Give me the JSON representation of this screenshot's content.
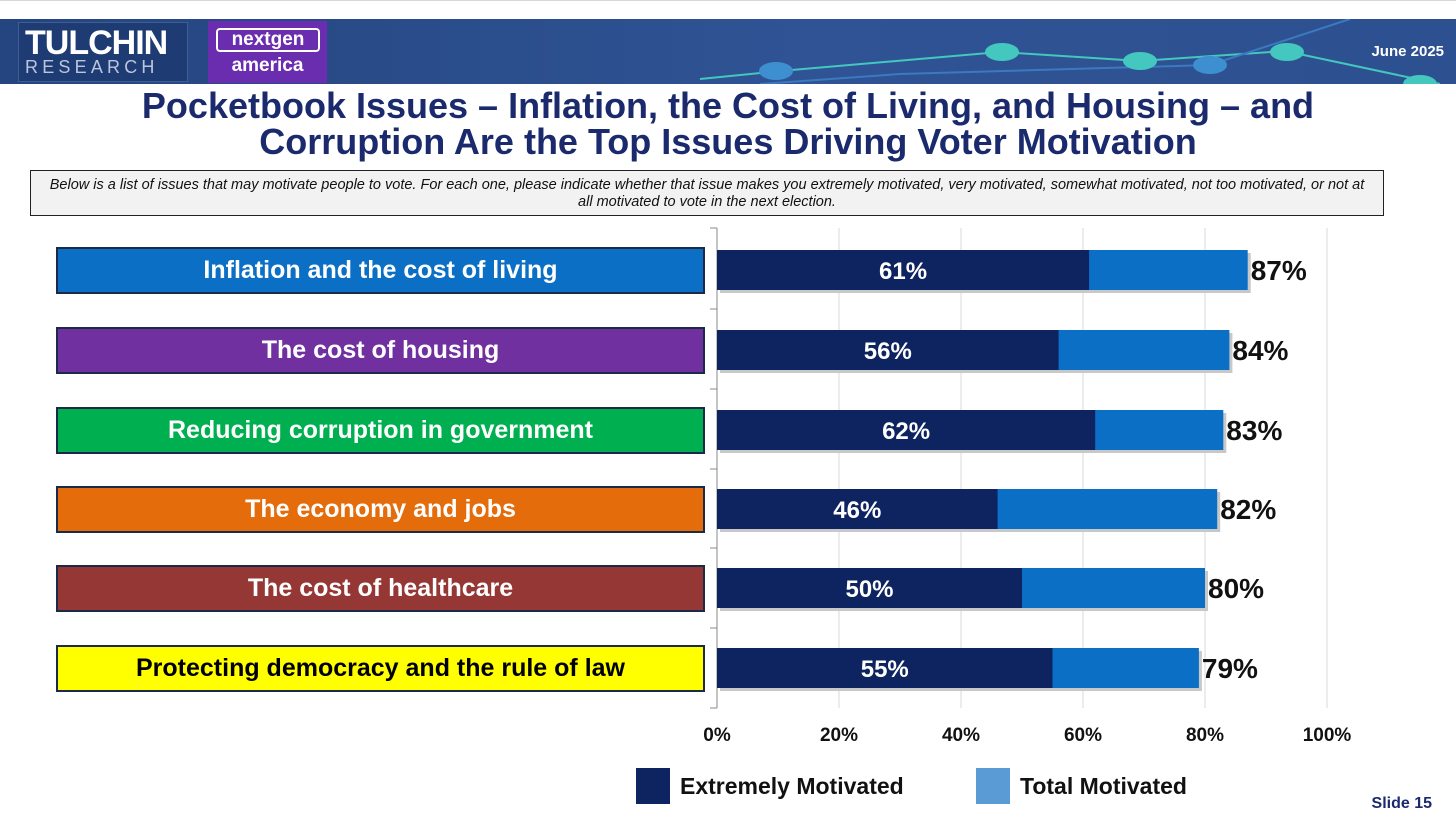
{
  "header": {
    "logo_tulchin_top": "TULCHIN",
    "logo_tulchin_bottom": "RESEARCH",
    "logo_nextgen_top": "nextgen",
    "logo_nextgen_bottom": "america",
    "date": "June 2025"
  },
  "title_line1": "Pocketbook Issues – Inflation, the Cost of Living, and Housing – and",
  "title_line2": "Corruption Are the Top Issues Driving Voter Motivation",
  "question_text": "Below is a list of issues that may motivate people to vote. For each one, please indicate whether that issue makes you extremely motivated, very motivated, somewhat motivated, not too motivated, or not at all motivated to vote in the next election.",
  "category_colors": [
    "#0b6fc6",
    "#7030a0",
    "#00b050",
    "#e46c0a",
    "#953735",
    "#ffff00"
  ],
  "category_text_colors": [
    "#ffffff",
    "#ffffff",
    "#ffffff",
    "#ffffff",
    "#ffffff",
    "#000000"
  ],
  "colors": {
    "extremely": "#0d2461",
    "total": "#0b6fc6",
    "legend_total": "#5b9bd5"
  },
  "chart_data": {
    "type": "bar",
    "orientation": "horizontal",
    "stacking": "overlay",
    "categories": [
      "Inflation and the cost of living",
      "The cost of housing",
      "Reducing corruption in government",
      "The economy and jobs",
      "The cost of healthcare",
      "Protecting democracy and the rule of law"
    ],
    "series": [
      {
        "name": "Extremely Motivated",
        "values": [
          61,
          56,
          62,
          46,
          50,
          55
        ]
      },
      {
        "name": "Total Motivated",
        "values": [
          87,
          84,
          83,
          82,
          80,
          79
        ]
      }
    ],
    "value_labels": {
      "extremely": [
        "61%",
        "56%",
        "62%",
        "46%",
        "50%",
        "55%"
      ],
      "total": [
        "87%",
        "84%",
        "83%",
        "82%",
        "80%",
        "79%"
      ]
    },
    "xlim": [
      0,
      100
    ],
    "x_ticks": [
      "0%",
      "20%",
      "40%",
      "60%",
      "80%",
      "100%"
    ],
    "grid": true,
    "legend_position": "bottom"
  },
  "legend": {
    "extremely_label": "Extremely Motivated",
    "total_label": "Total Motivated"
  },
  "footer": {
    "slide": "Slide 15"
  }
}
